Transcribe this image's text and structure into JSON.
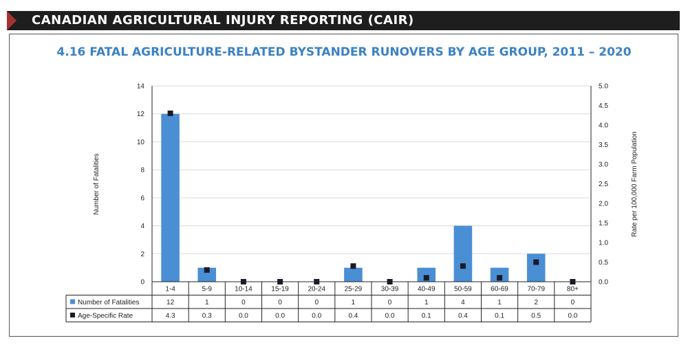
{
  "header": {
    "banner": "CANADIAN AGRICULTURAL INJURY REPORTING (CAIR)"
  },
  "chart_data": {
    "type": "bar",
    "title": "4.16 FATAL AGRICULTURE-RELATED BYSTANDER RUNOVERS BY AGE GROUP, 2011 – 2020",
    "categories": [
      "1-4",
      "5-9",
      "10-14",
      "15-19",
      "20-24",
      "25-29",
      "30-39",
      "40-49",
      "50-59",
      "60-69",
      "70-79",
      "80+"
    ],
    "series": [
      {
        "name": "Number of Fatalities",
        "kind": "bar",
        "axis": "left",
        "color": "#4a8fd4",
        "values": [
          12,
          1,
          0,
          0,
          0,
          1,
          0,
          1,
          4,
          1,
          2,
          0
        ],
        "labels": [
          "12",
          "1",
          "0",
          "0",
          "0",
          "1",
          "0",
          "1",
          "4",
          "1",
          "2",
          "0"
        ]
      },
      {
        "name": "Age-Specific Rate",
        "kind": "marker",
        "axis": "right",
        "color": "#1a1a2a",
        "values": [
          4.3,
          0.3,
          0.0,
          0.0,
          0.0,
          0.4,
          0.0,
          0.1,
          0.4,
          0.1,
          0.5,
          0.0
        ],
        "labels": [
          "4.3",
          "0.3",
          "0.0",
          "0.0",
          "0.0",
          "0.4",
          "0.0",
          "0.1",
          "0.4",
          "0.1",
          "0.5",
          "0.0"
        ]
      }
    ],
    "ylabel": "Number of Fatalities",
    "y2label": "Rate per 100,000 Farm Population",
    "ylim": [
      0,
      14
    ],
    "y2lim": [
      0,
      5
    ],
    "yticks": [
      "0",
      "2",
      "4",
      "6",
      "8",
      "10",
      "12",
      "14"
    ],
    "y2ticks": [
      "0.0",
      "0.5",
      "1.0",
      "1.5",
      "2.0",
      "2.5",
      "3.0",
      "3.5",
      "4.0",
      "4.5",
      "5.0"
    ],
    "grid": true,
    "legend": "table-below"
  }
}
